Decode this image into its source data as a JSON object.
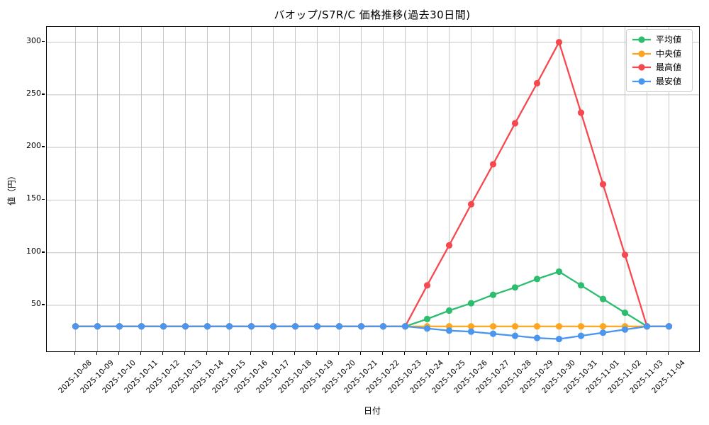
{
  "chart_data": {
    "type": "line",
    "title": "バオップ/S7R/C 価格推移(過去30日間)",
    "xlabel": "日付",
    "ylabel": "値（円）",
    "grid": true,
    "grid_color": "#c6c6c6",
    "background": "#ffffff",
    "legend_position": "upper right",
    "x": [
      "2025-10-08",
      "2025-10-09",
      "2025-10-10",
      "2025-10-11",
      "2025-10-12",
      "2025-10-13",
      "2025-10-14",
      "2025-10-15",
      "2025-10-16",
      "2025-10-17",
      "2025-10-18",
      "2025-10-19",
      "2025-10-20",
      "2025-10-21",
      "2025-10-22",
      "2025-10-23",
      "2025-10-24",
      "2025-10-25",
      "2025-10-26",
      "2025-10-27",
      "2025-10-28",
      "2025-10-29",
      "2025-10-30",
      "2025-10-31",
      "2025-11-01",
      "2025-11-02",
      "2025-11-03",
      "2025-11-04"
    ],
    "yticks": [
      50,
      100,
      150,
      200,
      250,
      300
    ],
    "ylim": [
      6.3,
      314.5
    ],
    "series": [
      {
        "name": "平均値",
        "color": "#2dbd6e",
        "values": [
          30,
          30,
          30,
          30,
          30,
          30,
          30,
          30,
          30,
          30,
          30,
          30,
          30,
          30,
          30,
          30,
          37,
          45,
          52,
          60,
          67,
          75,
          82,
          69,
          56,
          43,
          30,
          30
        ]
      },
      {
        "name": "中央値",
        "color": "#fba61e",
        "values": [
          30,
          30,
          30,
          30,
          30,
          30,
          30,
          30,
          30,
          30,
          30,
          30,
          30,
          30,
          30,
          30,
          30,
          30,
          30,
          30,
          30,
          30,
          30,
          30,
          30,
          30,
          30,
          30
        ]
      },
      {
        "name": "最高値",
        "color": "#f6494f",
        "values": [
          30,
          30,
          30,
          30,
          30,
          30,
          30,
          30,
          30,
          30,
          30,
          30,
          30,
          30,
          30,
          30,
          69,
          107,
          146,
          184,
          223,
          261,
          300,
          233,
          165,
          98,
          30,
          30
        ]
      },
      {
        "name": "最安値",
        "color": "#4a96ef",
        "values": [
          30,
          30,
          30,
          30,
          30,
          30,
          30,
          30,
          30,
          30,
          30,
          30,
          30,
          30,
          30,
          30,
          28,
          26,
          25,
          23,
          21,
          19,
          18,
          21,
          24,
          27,
          30,
          30
        ]
      }
    ]
  }
}
